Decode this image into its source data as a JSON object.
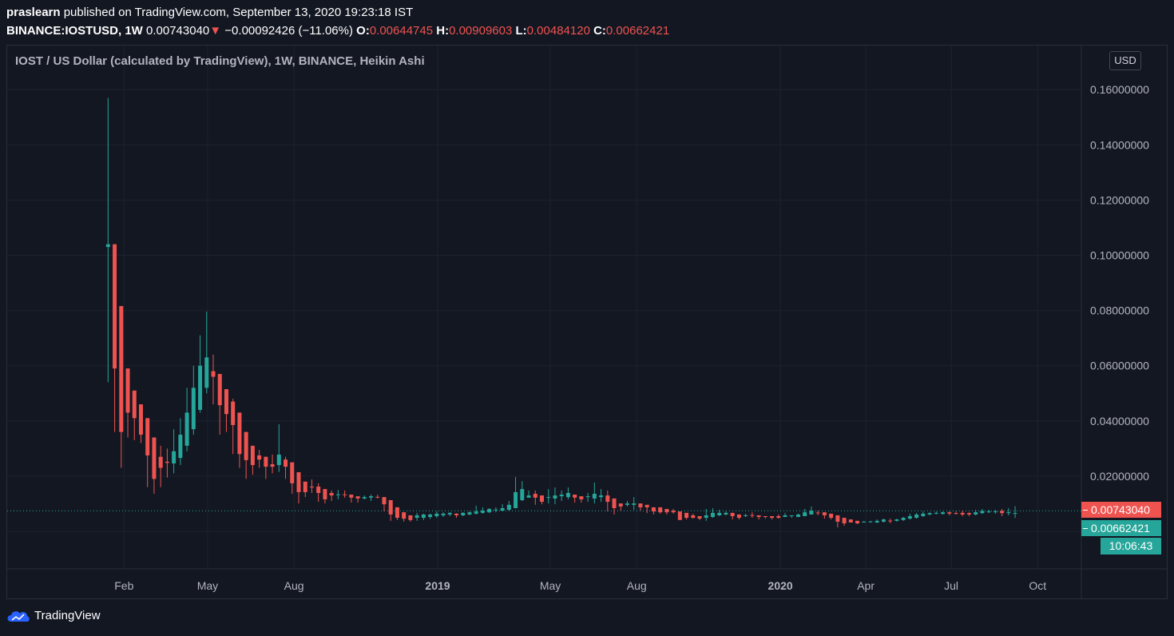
{
  "header": {
    "author": "praslearn",
    "published": "published on TradingView.com, September 13, 2020 19:23:18 IST",
    "symbol": "BINANCE:IOSTUSD, 1W",
    "last": "0.00743040",
    "change": "−0.00092426 (−11.06%)",
    "direction_icon": "triangle-down",
    "o_label": "O:",
    "o": "0.00644745",
    "h_label": "H:",
    "h": "0.00909603",
    "l_label": "L:",
    "l": "0.00484120",
    "c_label": "C:",
    "c": "0.00662421"
  },
  "pane_title": "IOST / US Dollar (calculated by TradingView), 1W, BINANCE, Heikin Ashi",
  "currency_button": "USD",
  "price_labels": {
    "last": "0.00743040",
    "ha_close": "0.00662421",
    "countdown": "10:06:43"
  },
  "logo": "TradingView",
  "colors": {
    "background": "#131722",
    "up": "#26a69a",
    "down": "#ef5350",
    "grid": "#1e2230"
  },
  "chart_data": {
    "type": "candlestick",
    "style": "Heikin Ashi",
    "interval": "1W",
    "grid": true,
    "ylim": [
      0,
      0.17
    ],
    "yticks": [
      "0.16000000",
      "0.14000000",
      "0.12000000",
      "0.10000000",
      "0.08000000",
      "0.06000000",
      "0.04000000",
      "0.02000000"
    ],
    "xticks": [
      {
        "label": "Feb",
        "date": "2018-02-01"
      },
      {
        "label": "May",
        "date": "2018-05-01"
      },
      {
        "label": "Aug",
        "date": "2018-08-01"
      },
      {
        "label": "2019",
        "date": "2019-01-01",
        "bold": true
      },
      {
        "label": "May",
        "date": "2019-05-01"
      },
      {
        "label": "Aug",
        "date": "2019-08-01"
      },
      {
        "label": "2020",
        "date": "2020-01-01",
        "bold": true
      },
      {
        "label": "Apr",
        "date": "2020-04-01"
      },
      {
        "label": "Jul",
        "date": "2020-07-01"
      },
      {
        "label": "Oct",
        "date": "2020-10-01"
      }
    ],
    "last_price_line": 0.0074304,
    "candles": [
      [
        "2018-01-15",
        0.103,
        0.157,
        0.054,
        0.104
      ],
      [
        "2018-01-22",
        0.104,
        0.104,
        0.036,
        0.059
      ],
      [
        "2018-01-29",
        0.0816,
        0.0816,
        0.023,
        0.036
      ],
      [
        "2018-02-05",
        0.059,
        0.059,
        0.034,
        0.043
      ],
      [
        "2018-02-12",
        0.051,
        0.051,
        0.033,
        0.041
      ],
      [
        "2018-02-19",
        0.046,
        0.046,
        0.032,
        0.035
      ],
      [
        "2018-02-26",
        0.041,
        0.041,
        0.016,
        0.0275
      ],
      [
        "2018-03-05",
        0.034,
        0.034,
        0.0136,
        0.019
      ],
      [
        "2018-03-12",
        0.027,
        0.031,
        0.016,
        0.023
      ],
      [
        "2018-03-19",
        0.0252,
        0.03,
        0.0195,
        0.0248
      ],
      [
        "2018-03-26",
        0.0246,
        0.037,
        0.021,
        0.029
      ],
      [
        "2018-04-02",
        0.0266,
        0.041,
        0.024,
        0.035
      ],
      [
        "2018-04-09",
        0.031,
        0.052,
        0.029,
        0.043
      ],
      [
        "2018-04-16",
        0.037,
        0.06,
        0.035,
        0.052
      ],
      [
        "2018-04-23",
        0.044,
        0.071,
        0.043,
        0.06
      ],
      [
        "2018-04-30",
        0.052,
        0.0796,
        0.05,
        0.063
      ],
      [
        "2018-05-07",
        0.058,
        0.064,
        0.046,
        0.056
      ],
      [
        "2018-05-14",
        0.057,
        0.057,
        0.035,
        0.0457
      ],
      [
        "2018-05-21",
        0.0515,
        0.0515,
        0.036,
        0.0425
      ],
      [
        "2018-05-28",
        0.047,
        0.048,
        0.028,
        0.0385
      ],
      [
        "2018-06-04",
        0.043,
        0.043,
        0.023,
        0.028
      ],
      [
        "2018-06-11",
        0.036,
        0.036,
        0.019,
        0.0258
      ],
      [
        "2018-06-18",
        0.031,
        0.031,
        0.0205,
        0.024
      ],
      [
        "2018-06-25",
        0.0275,
        0.0295,
        0.023,
        0.026
      ],
      [
        "2018-07-02",
        0.027,
        0.027,
        0.019,
        0.0234
      ],
      [
        "2018-07-09",
        0.0243,
        0.0278,
        0.021,
        0.0234
      ],
      [
        "2018-07-16",
        0.024,
        0.0388,
        0.0215,
        0.0278
      ],
      [
        "2018-07-23",
        0.026,
        0.027,
        0.019,
        0.0234
      ],
      [
        "2018-07-30",
        0.025,
        0.025,
        0.0136,
        0.0174
      ],
      [
        "2018-08-06",
        0.0214,
        0.0214,
        0.0101,
        0.0142
      ],
      [
        "2018-08-13",
        0.018,
        0.018,
        0.0124,
        0.0142
      ],
      [
        "2018-08-20",
        0.0162,
        0.0188,
        0.0139,
        0.0159
      ],
      [
        "2018-08-27",
        0.0162,
        0.0174,
        0.0107,
        0.0139
      ],
      [
        "2018-09-03",
        0.0153,
        0.0153,
        0.0101,
        0.0116
      ],
      [
        "2018-09-10",
        0.0139,
        0.0148,
        0.011,
        0.013
      ],
      [
        "2018-09-17",
        0.0132,
        0.015,
        0.0116,
        0.0134
      ],
      [
        "2018-09-24",
        0.0134,
        0.0148,
        0.0122,
        0.0132
      ],
      [
        "2018-10-01",
        0.0133,
        0.0133,
        0.0104,
        0.0122
      ],
      [
        "2018-10-08",
        0.0127,
        0.0127,
        0.0104,
        0.0119
      ],
      [
        "2018-10-15",
        0.0119,
        0.013,
        0.0116,
        0.0124
      ],
      [
        "2018-10-22",
        0.0122,
        0.0133,
        0.011,
        0.0127
      ],
      [
        "2018-10-29",
        0.0125,
        0.0133,
        0.0119,
        0.0123
      ],
      [
        "2018-11-05",
        0.0124,
        0.0124,
        0.0072,
        0.0098
      ],
      [
        "2018-11-12",
        0.0113,
        0.0113,
        0.0038,
        0.0061
      ],
      [
        "2018-11-19",
        0.0087,
        0.0087,
        0.0041,
        0.0049
      ],
      [
        "2018-11-26",
        0.0069,
        0.0069,
        0.0035,
        0.0046
      ],
      [
        "2018-12-03",
        0.0058,
        0.0058,
        0.0035,
        0.0041
      ],
      [
        "2018-12-10",
        0.0049,
        0.0067,
        0.0038,
        0.0058
      ],
      [
        "2018-12-17",
        0.0049,
        0.0064,
        0.0041,
        0.0061
      ],
      [
        "2018-12-24",
        0.0052,
        0.0064,
        0.0045,
        0.0061
      ],
      [
        "2018-12-31",
        0.0055,
        0.0072,
        0.0049,
        0.0064
      ],
      [
        "2019-01-07",
        0.0058,
        0.0069,
        0.0052,
        0.0064
      ],
      [
        "2019-01-14",
        0.0061,
        0.0069,
        0.0055,
        0.0067
      ],
      [
        "2019-01-21",
        0.0064,
        0.0066,
        0.0049,
        0.0058
      ],
      [
        "2019-01-28",
        0.0058,
        0.0069,
        0.0055,
        0.0067
      ],
      [
        "2019-02-04",
        0.0061,
        0.0072,
        0.0058,
        0.0069
      ],
      [
        "2019-02-11",
        0.0064,
        0.0093,
        0.0061,
        0.0072
      ],
      [
        "2019-02-18",
        0.0067,
        0.0087,
        0.0064,
        0.0075
      ],
      [
        "2019-02-25",
        0.0069,
        0.0084,
        0.0066,
        0.0081
      ],
      [
        "2019-03-04",
        0.0077,
        0.0087,
        0.0069,
        0.0079
      ],
      [
        "2019-03-11",
        0.0075,
        0.0098,
        0.0072,
        0.0084
      ],
      [
        "2019-03-18",
        0.0078,
        0.011,
        0.0075,
        0.0096
      ],
      [
        "2019-03-25",
        0.0084,
        0.0197,
        0.0084,
        0.0142
      ],
      [
        "2019-04-01",
        0.0113,
        0.0182,
        0.011,
        0.0153
      ],
      [
        "2019-04-08",
        0.0122,
        0.0148,
        0.0122,
        0.013
      ],
      [
        "2019-04-15",
        0.0136,
        0.0148,
        0.0096,
        0.0122
      ],
      [
        "2019-04-22",
        0.013,
        0.013,
        0.0098,
        0.0107
      ],
      [
        "2019-04-29",
        0.0122,
        0.0153,
        0.0101,
        0.0124
      ],
      [
        "2019-05-06",
        0.0119,
        0.0159,
        0.0098,
        0.013
      ],
      [
        "2019-05-13",
        0.0127,
        0.0148,
        0.011,
        0.0133
      ],
      [
        "2019-05-20",
        0.0124,
        0.0159,
        0.0116,
        0.0139
      ],
      [
        "2019-05-27",
        0.0133,
        0.0133,
        0.0104,
        0.0122
      ],
      [
        "2019-06-03",
        0.0127,
        0.0127,
        0.0104,
        0.0116
      ],
      [
        "2019-06-10",
        0.0124,
        0.0139,
        0.0107,
        0.0127
      ],
      [
        "2019-06-17",
        0.0119,
        0.0177,
        0.0101,
        0.0136
      ],
      [
        "2019-06-24",
        0.0124,
        0.0153,
        0.0107,
        0.013
      ],
      [
        "2019-07-01",
        0.013,
        0.0148,
        0.0072,
        0.0107
      ],
      [
        "2019-07-08",
        0.0119,
        0.0119,
        0.0061,
        0.0084
      ],
      [
        "2019-07-15",
        0.0101,
        0.0101,
        0.0075,
        0.009
      ],
      [
        "2019-07-22",
        0.0096,
        0.011,
        0.009,
        0.0101
      ],
      [
        "2019-07-29",
        0.0096,
        0.0124,
        0.0078,
        0.0101
      ],
      [
        "2019-08-05",
        0.0101,
        0.0101,
        0.0075,
        0.0087
      ],
      [
        "2019-08-12",
        0.0096,
        0.0096,
        0.0066,
        0.0087
      ],
      [
        "2019-08-19",
        0.0087,
        0.0087,
        0.0061,
        0.0072
      ],
      [
        "2019-08-26",
        0.0087,
        0.0087,
        0.0064,
        0.0069
      ],
      [
        "2019-09-02",
        0.0081,
        0.0081,
        0.0061,
        0.0069
      ],
      [
        "2019-09-09",
        0.0075,
        0.0081,
        0.0064,
        0.0069
      ],
      [
        "2019-09-16",
        0.0072,
        0.0072,
        0.0041,
        0.0041
      ],
      [
        "2019-09-23",
        0.0067,
        0.0067,
        0.0043,
        0.0049
      ],
      [
        "2019-09-30",
        0.0058,
        0.0064,
        0.0046,
        0.0049
      ],
      [
        "2019-10-07",
        0.0055,
        0.0055,
        0.0041,
        0.0046
      ],
      [
        "2019-10-14",
        0.0049,
        0.0081,
        0.0038,
        0.0058
      ],
      [
        "2019-10-21",
        0.0052,
        0.0084,
        0.0049,
        0.0067
      ],
      [
        "2019-10-28",
        0.0058,
        0.0078,
        0.0055,
        0.0067
      ],
      [
        "2019-11-04",
        0.0061,
        0.0072,
        0.0058,
        0.0067
      ],
      [
        "2019-11-11",
        0.0067,
        0.0067,
        0.0043,
        0.0055
      ],
      [
        "2019-11-18",
        0.0061,
        0.0061,
        0.0043,
        0.0049
      ],
      [
        "2019-11-25",
        0.0055,
        0.0064,
        0.0052,
        0.0058
      ],
      [
        "2019-12-02",
        0.0059,
        0.0069,
        0.0049,
        0.0057
      ],
      [
        "2019-12-09",
        0.0058,
        0.0058,
        0.0043,
        0.0052
      ],
      [
        "2019-12-16",
        0.0055,
        0.0055,
        0.0046,
        0.0052
      ],
      [
        "2019-12-23",
        0.0055,
        0.0055,
        0.0043,
        0.0049
      ],
      [
        "2019-12-30",
        0.0055,
        0.0061,
        0.0046,
        0.0049
      ],
      [
        "2020-01-06",
        0.0052,
        0.0067,
        0.0052,
        0.0058
      ],
      [
        "2020-01-13",
        0.0055,
        0.0058,
        0.0049,
        0.0058
      ],
      [
        "2020-01-20",
        0.0052,
        0.0064,
        0.0052,
        0.0061
      ],
      [
        "2020-01-27",
        0.0055,
        0.0081,
        0.0055,
        0.0069
      ],
      [
        "2020-02-03",
        0.0061,
        0.009,
        0.0061,
        0.0075
      ],
      [
        "2020-02-10",
        0.0068,
        0.0075,
        0.0058,
        0.0066
      ],
      [
        "2020-02-17",
        0.0069,
        0.0069,
        0.0046,
        0.0058
      ],
      [
        "2020-02-24",
        0.0064,
        0.0064,
        0.0043,
        0.0049
      ],
      [
        "2020-03-02",
        0.0058,
        0.0058,
        0.0014,
        0.0035
      ],
      [
        "2020-03-09",
        0.0049,
        0.0049,
        0.002,
        0.0029
      ],
      [
        "2020-03-16",
        0.0043,
        0.0043,
        0.0032,
        0.0032
      ],
      [
        "2020-03-23",
        0.0038,
        0.0038,
        0.0026,
        0.0029
      ],
      [
        "2020-03-30",
        0.0034,
        0.0038,
        0.0032,
        0.0035
      ],
      [
        "2020-04-06",
        0.0034,
        0.0038,
        0.0031,
        0.0036
      ],
      [
        "2020-04-13",
        0.0032,
        0.0043,
        0.003,
        0.0038
      ],
      [
        "2020-04-20",
        0.0035,
        0.0046,
        0.0032,
        0.0043
      ],
      [
        "2020-04-27",
        0.0039,
        0.0046,
        0.0029,
        0.0037
      ],
      [
        "2020-05-04",
        0.0038,
        0.0046,
        0.0035,
        0.0043
      ],
      [
        "2020-05-11",
        0.0041,
        0.0052,
        0.0038,
        0.0049
      ],
      [
        "2020-05-18",
        0.0046,
        0.0064,
        0.0043,
        0.0055
      ],
      [
        "2020-05-25",
        0.0049,
        0.0067,
        0.0046,
        0.0061
      ],
      [
        "2020-06-01",
        0.0055,
        0.0072,
        0.0052,
        0.0064
      ],
      [
        "2020-06-08",
        0.0061,
        0.0069,
        0.0058,
        0.0066
      ],
      [
        "2020-06-15",
        0.0064,
        0.0072,
        0.0061,
        0.0067
      ],
      [
        "2020-06-22",
        0.0063,
        0.0072,
        0.0061,
        0.0069
      ],
      [
        "2020-06-29",
        0.0069,
        0.0072,
        0.0058,
        0.0064
      ],
      [
        "2020-07-06",
        0.0066,
        0.0072,
        0.0061,
        0.0065
      ],
      [
        "2020-07-13",
        0.0067,
        0.0075,
        0.0055,
        0.0061
      ],
      [
        "2020-07-20",
        0.0066,
        0.0069,
        0.0055,
        0.0061
      ],
      [
        "2020-07-27",
        0.0061,
        0.0078,
        0.0058,
        0.0069
      ],
      [
        "2020-08-03",
        0.0066,
        0.0081,
        0.0063,
        0.0074
      ],
      [
        "2020-08-10",
        0.0069,
        0.0078,
        0.0066,
        0.0072
      ],
      [
        "2020-08-17",
        0.007,
        0.0078,
        0.0064,
        0.0072
      ],
      [
        "2020-08-24",
        0.0074,
        0.0081,
        0.0055,
        0.0066
      ],
      [
        "2020-08-31",
        0.0066,
        0.0084,
        0.0058,
        0.0069
      ],
      [
        "2020-09-07",
        0.00644745,
        0.00909603,
        0.0048412,
        0.00662421
      ]
    ]
  }
}
